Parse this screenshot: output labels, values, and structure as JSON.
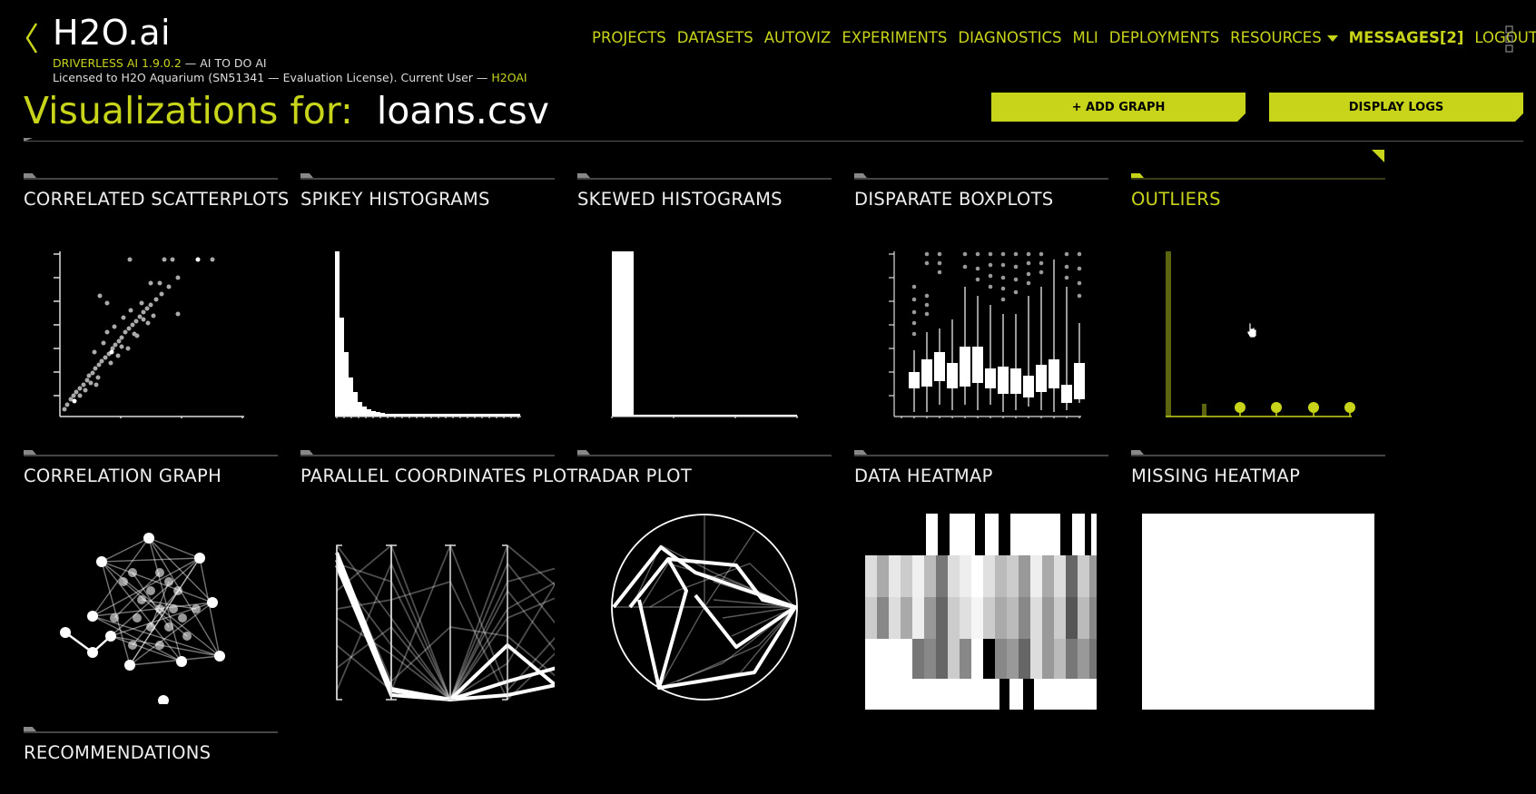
{
  "header": {
    "logo_text": "H2O.ai",
    "version_text": "DRIVERLESS AI 1.9.0.2",
    "tagline": " — AI TO DO AI",
    "license_text": "Licensed to H2O Aquarium (SN51341 — Evaluation License). Current User — ",
    "current_user": "H2OAI"
  },
  "nav": {
    "items": [
      "PROJECTS",
      "DATASETS",
      "AUTOVIZ",
      "EXPERIMENTS",
      "DIAGNOSTICS",
      "MLI",
      "DEPLOYMENTS"
    ],
    "resources_label": "RESOURCES",
    "messages_label": "MESSAGES[2]",
    "logout_label": "LOGOUT"
  },
  "page": {
    "title_label": "Visualizations for:",
    "dataset_name": "loans.csv"
  },
  "buttons": {
    "add_graph": "+ ADD GRAPH",
    "display_logs": "DISPLAY LOGS"
  },
  "tiles": [
    {
      "title": "CORRELATED SCATTERPLOTS"
    },
    {
      "title": "SPIKEY HISTOGRAMS"
    },
    {
      "title": "SKEWED HISTOGRAMS"
    },
    {
      "title": "DISPARATE BOXPLOTS"
    },
    {
      "title": "OUTLIERS"
    },
    {
      "title": "CORRELATION GRAPH"
    },
    {
      "title": "PARALLEL COORDINATES PLOT"
    },
    {
      "title": "RADAR PLOT"
    },
    {
      "title": "DATA HEATMAP"
    },
    {
      "title": "MISSING HEATMAP"
    },
    {
      "title": "RECOMMENDATIONS"
    }
  ],
  "colors": {
    "accent": "#c8d41a",
    "background": "#000000"
  }
}
